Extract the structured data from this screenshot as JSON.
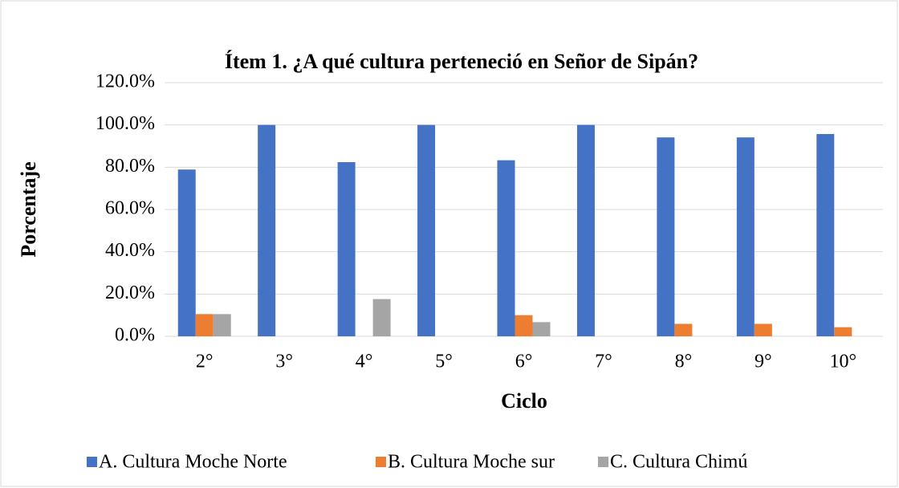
{
  "chart_data": {
    "type": "bar",
    "title": "Ítem 1. ¿A qué cultura perteneció en Señor de Sipán?",
    "xlabel": "Ciclo",
    "ylabel": "Porcentaje",
    "categories": [
      "2°",
      "3°",
      "4°",
      "5°",
      "6°",
      "7°",
      "8°",
      "9°",
      "10°"
    ],
    "series": [
      {
        "name": "A. Cultura Moche Norte",
        "color": "#4472c4",
        "values": [
          78.9,
          100,
          82.4,
          100,
          83.3,
          100,
          94.1,
          94.1,
          95.7
        ]
      },
      {
        "name": "B. Cultura Moche sur",
        "color": "#ed7d31",
        "values": [
          10.5,
          0,
          0,
          0,
          10.0,
          0,
          5.9,
          5.9,
          4.3
        ]
      },
      {
        "name": "C. Cultura Chimú",
        "color": "#a5a5a5",
        "values": [
          10.5,
          0,
          17.6,
          0,
          6.7,
          0,
          0,
          0,
          0
        ]
      }
    ],
    "ylim": [
      0,
      120
    ],
    "yticks": [
      {
        "value": 0,
        "label": "0.0%"
      },
      {
        "value": 20,
        "label": "20.0%"
      },
      {
        "value": 40,
        "label": "40.0%"
      },
      {
        "value": 60,
        "label": "60.0%"
      },
      {
        "value": 80,
        "label": "80.0%"
      },
      {
        "value": 100,
        "label": "100.0%"
      },
      {
        "value": 120,
        "label": "120.0%"
      }
    ],
    "grid": true,
    "legend": "bottom"
  }
}
